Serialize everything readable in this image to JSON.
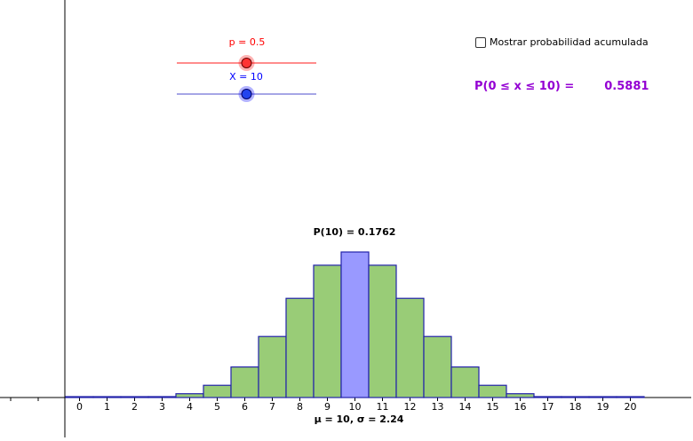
{
  "sliders": {
    "p": {
      "label": "p = 0.5",
      "value": 0.5,
      "min": 0,
      "max": 1,
      "color": "#ff0000"
    },
    "x": {
      "label": "X = 10",
      "value": 10,
      "min": 0,
      "max": 20,
      "color": "#0000ff"
    }
  },
  "cumulative": {
    "checkbox_label": "Mostrar probabilidad acumulada",
    "checked": false,
    "formula": "P(0 ≤ x ≤ 10) =",
    "value": "0.5881",
    "color": "#9400d3"
  },
  "chart_data": {
    "type": "bar",
    "categories": [
      "0",
      "1",
      "2",
      "3",
      "4",
      "5",
      "6",
      "7",
      "8",
      "9",
      "10",
      "11",
      "12",
      "13",
      "14",
      "15",
      "16",
      "17",
      "18",
      "19",
      "20"
    ],
    "values": [
      1e-06,
      2e-05,
      0.0002,
      0.0011,
      0.0046,
      0.0148,
      0.037,
      0.0739,
      0.1201,
      0.1602,
      0.1762,
      0.1602,
      0.1201,
      0.0739,
      0.037,
      0.0148,
      0.0046,
      0.0011,
      0.0002,
      2e-05,
      1e-06
    ],
    "highlighted_index": 10,
    "highlight_label": "P(10) = 0.1762",
    "stats_label": "μ = 10, σ = 2.24",
    "ylim": [
      0,
      0.2
    ],
    "colors": {
      "bar_fill": "#99cc77",
      "bar_highlight": "#9999ff",
      "bar_border": "#2222aa",
      "axis": "#000000"
    }
  }
}
